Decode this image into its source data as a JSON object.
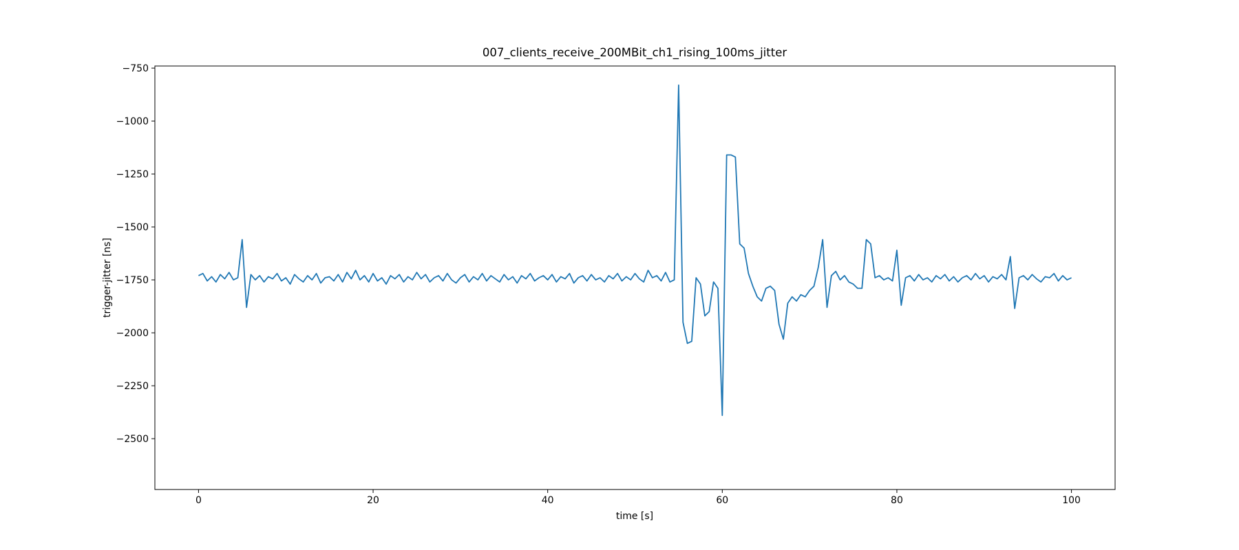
{
  "chart_data": {
    "type": "line",
    "title": "007_clients_receive_200MBit_ch1_rising_100ms_jitter",
    "x_label": "time [s]",
    "y_label": "trigger-jitter [ns]",
    "grid": false,
    "xlim": [
      -5,
      105
    ],
    "ylim": [
      -2740,
      -740
    ],
    "xticks": [
      0,
      20,
      40,
      60,
      80,
      100
    ],
    "yticks": [
      {
        "value": -2500,
        "label": "−2500"
      },
      {
        "value": -2250,
        "label": "−2250"
      },
      {
        "value": -2000,
        "label": "−2000"
      },
      {
        "value": -1750,
        "label": "−1750"
      },
      {
        "value": -1500,
        "label": "−1500"
      },
      {
        "value": -1250,
        "label": "−1250"
      },
      {
        "value": -1000,
        "label": "−1000"
      },
      {
        "value": -750,
        "label": "−750"
      }
    ],
    "x": [
      0,
      0.5,
      1,
      1.5,
      2,
      2.5,
      3,
      3.5,
      4,
      4.5,
      5,
      5.5,
      6,
      6.5,
      7,
      7.5,
      8,
      8.5,
      9,
      9.5,
      10,
      10.5,
      11,
      11.5,
      12,
      12.5,
      13,
      13.5,
      14,
      14.5,
      15,
      15.5,
      16,
      16.5,
      17,
      17.5,
      18,
      18.5,
      19,
      19.5,
      20,
      20.5,
      21,
      21.5,
      22,
      22.5,
      23,
      23.5,
      24,
      24.5,
      25,
      25.5,
      26,
      26.5,
      27,
      27.5,
      28,
      28.5,
      29,
      29.5,
      30,
      30.5,
      31,
      31.5,
      32,
      32.5,
      33,
      33.5,
      34,
      34.5,
      35,
      35.5,
      36,
      36.5,
      37,
      37.5,
      38,
      38.5,
      39,
      39.5,
      40,
      40.5,
      41,
      41.5,
      42,
      42.5,
      43,
      43.5,
      44,
      44.5,
      45,
      45.5,
      46,
      46.5,
      47,
      47.5,
      48,
      48.5,
      49,
      49.5,
      50,
      50.5,
      51,
      51.5,
      52,
      52.5,
      53,
      53.5,
      54,
      54.5,
      55,
      55.5,
      56,
      56.5,
      57,
      57.5,
      58,
      58.5,
      59,
      59.5,
      60,
      60.5,
      61,
      61.5,
      62,
      62.5,
      63,
      63.5,
      64,
      64.5,
      65,
      65.5,
      66,
      66.5,
      67,
      67.5,
      68,
      68.5,
      69,
      69.5,
      70,
      70.5,
      71,
      71.5,
      72,
      72.5,
      73,
      73.5,
      74,
      74.5,
      75,
      75.5,
      76,
      76.5,
      77,
      77.5,
      78,
      78.5,
      79,
      79.5,
      80,
      80.5,
      81,
      81.5,
      82,
      82.5,
      83,
      83.5,
      84,
      84.5,
      85,
      85.5,
      86,
      86.5,
      87,
      87.5,
      88,
      88.5,
      89,
      89.5,
      90,
      90.5,
      91,
      91.5,
      92,
      92.5,
      93,
      93.5,
      94,
      94.5,
      95,
      95.5,
      96,
      96.5,
      97,
      97.5,
      98,
      98.5,
      99,
      99.5,
      100
    ],
    "series": [
      {
        "color": "#1f77b4",
        "values": [
          -1730,
          -1720,
          -1755,
          -1735,
          -1760,
          -1725,
          -1745,
          -1715,
          -1750,
          -1740,
          -1560,
          -1880,
          -1725,
          -1750,
          -1730,
          -1760,
          -1735,
          -1745,
          -1720,
          -1755,
          -1740,
          -1770,
          -1725,
          -1745,
          -1760,
          -1730,
          -1750,
          -1720,
          -1765,
          -1740,
          -1735,
          -1755,
          -1725,
          -1760,
          -1715,
          -1745,
          -1705,
          -1750,
          -1730,
          -1760,
          -1720,
          -1755,
          -1740,
          -1770,
          -1730,
          -1745,
          -1725,
          -1760,
          -1735,
          -1750,
          -1715,
          -1745,
          -1725,
          -1760,
          -1740,
          -1730,
          -1755,
          -1720,
          -1750,
          -1765,
          -1740,
          -1725,
          -1760,
          -1735,
          -1750,
          -1720,
          -1755,
          -1730,
          -1745,
          -1760,
          -1725,
          -1750,
          -1735,
          -1765,
          -1730,
          -1745,
          -1720,
          -1755,
          -1740,
          -1730,
          -1750,
          -1725,
          -1760,
          -1735,
          -1745,
          -1720,
          -1765,
          -1740,
          -1730,
          -1755,
          -1725,
          -1750,
          -1740,
          -1760,
          -1730,
          -1745,
          -1720,
          -1755,
          -1735,
          -1750,
          -1720,
          -1745,
          -1760,
          -1705,
          -1740,
          -1730,
          -1755,
          -1715,
          -1760,
          -1750,
          -830,
          -1950,
          -2050,
          -2040,
          -1740,
          -1770,
          -1920,
          -1900,
          -1760,
          -1790,
          -2390,
          -1160,
          -1160,
          -1170,
          -1580,
          -1600,
          -1720,
          -1780,
          -1830,
          -1850,
          -1790,
          -1780,
          -1800,
          -1960,
          -2030,
          -1860,
          -1830,
          -1850,
          -1820,
          -1830,
          -1800,
          -1780,
          -1690,
          -1560,
          -1880,
          -1730,
          -1710,
          -1750,
          -1730,
          -1760,
          -1770,
          -1790,
          -1790,
          -1560,
          -1580,
          -1740,
          -1730,
          -1750,
          -1740,
          -1755,
          -1610,
          -1870,
          -1740,
          -1730,
          -1755,
          -1725,
          -1750,
          -1740,
          -1760,
          -1730,
          -1745,
          -1725,
          -1755,
          -1735,
          -1760,
          -1740,
          -1730,
          -1750,
          -1720,
          -1745,
          -1730,
          -1760,
          -1735,
          -1745,
          -1725,
          -1750,
          -1640,
          -1885,
          -1740,
          -1730,
          -1750,
          -1725,
          -1745,
          -1760,
          -1735,
          -1740,
          -1720,
          -1755,
          -1730,
          -1750,
          -1740
        ]
      }
    ]
  }
}
